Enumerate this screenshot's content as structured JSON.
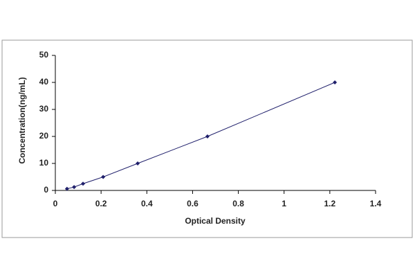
{
  "chart_data": {
    "type": "line",
    "x_label": "Optical Density",
    "y_label": "Concentration(ng/mL)",
    "x": [
      0.051,
      0.082,
      0.121,
      0.209,
      0.36,
      0.665,
      1.222
    ],
    "series": [
      {
        "color": "#1f1f6b",
        "values": [
          0.625,
          1.25,
          2.5,
          5,
          10,
          20,
          40
        ]
      }
    ],
    "xlim": [
      0,
      1.4
    ],
    "xticks": [
      0,
      0.2,
      0.4,
      0.6,
      0.8,
      1,
      1.2,
      1.4
    ],
    "ylim": [
      0,
      50
    ],
    "yticks": [
      0,
      10,
      20,
      30,
      40,
      50
    ],
    "grid": false
  }
}
